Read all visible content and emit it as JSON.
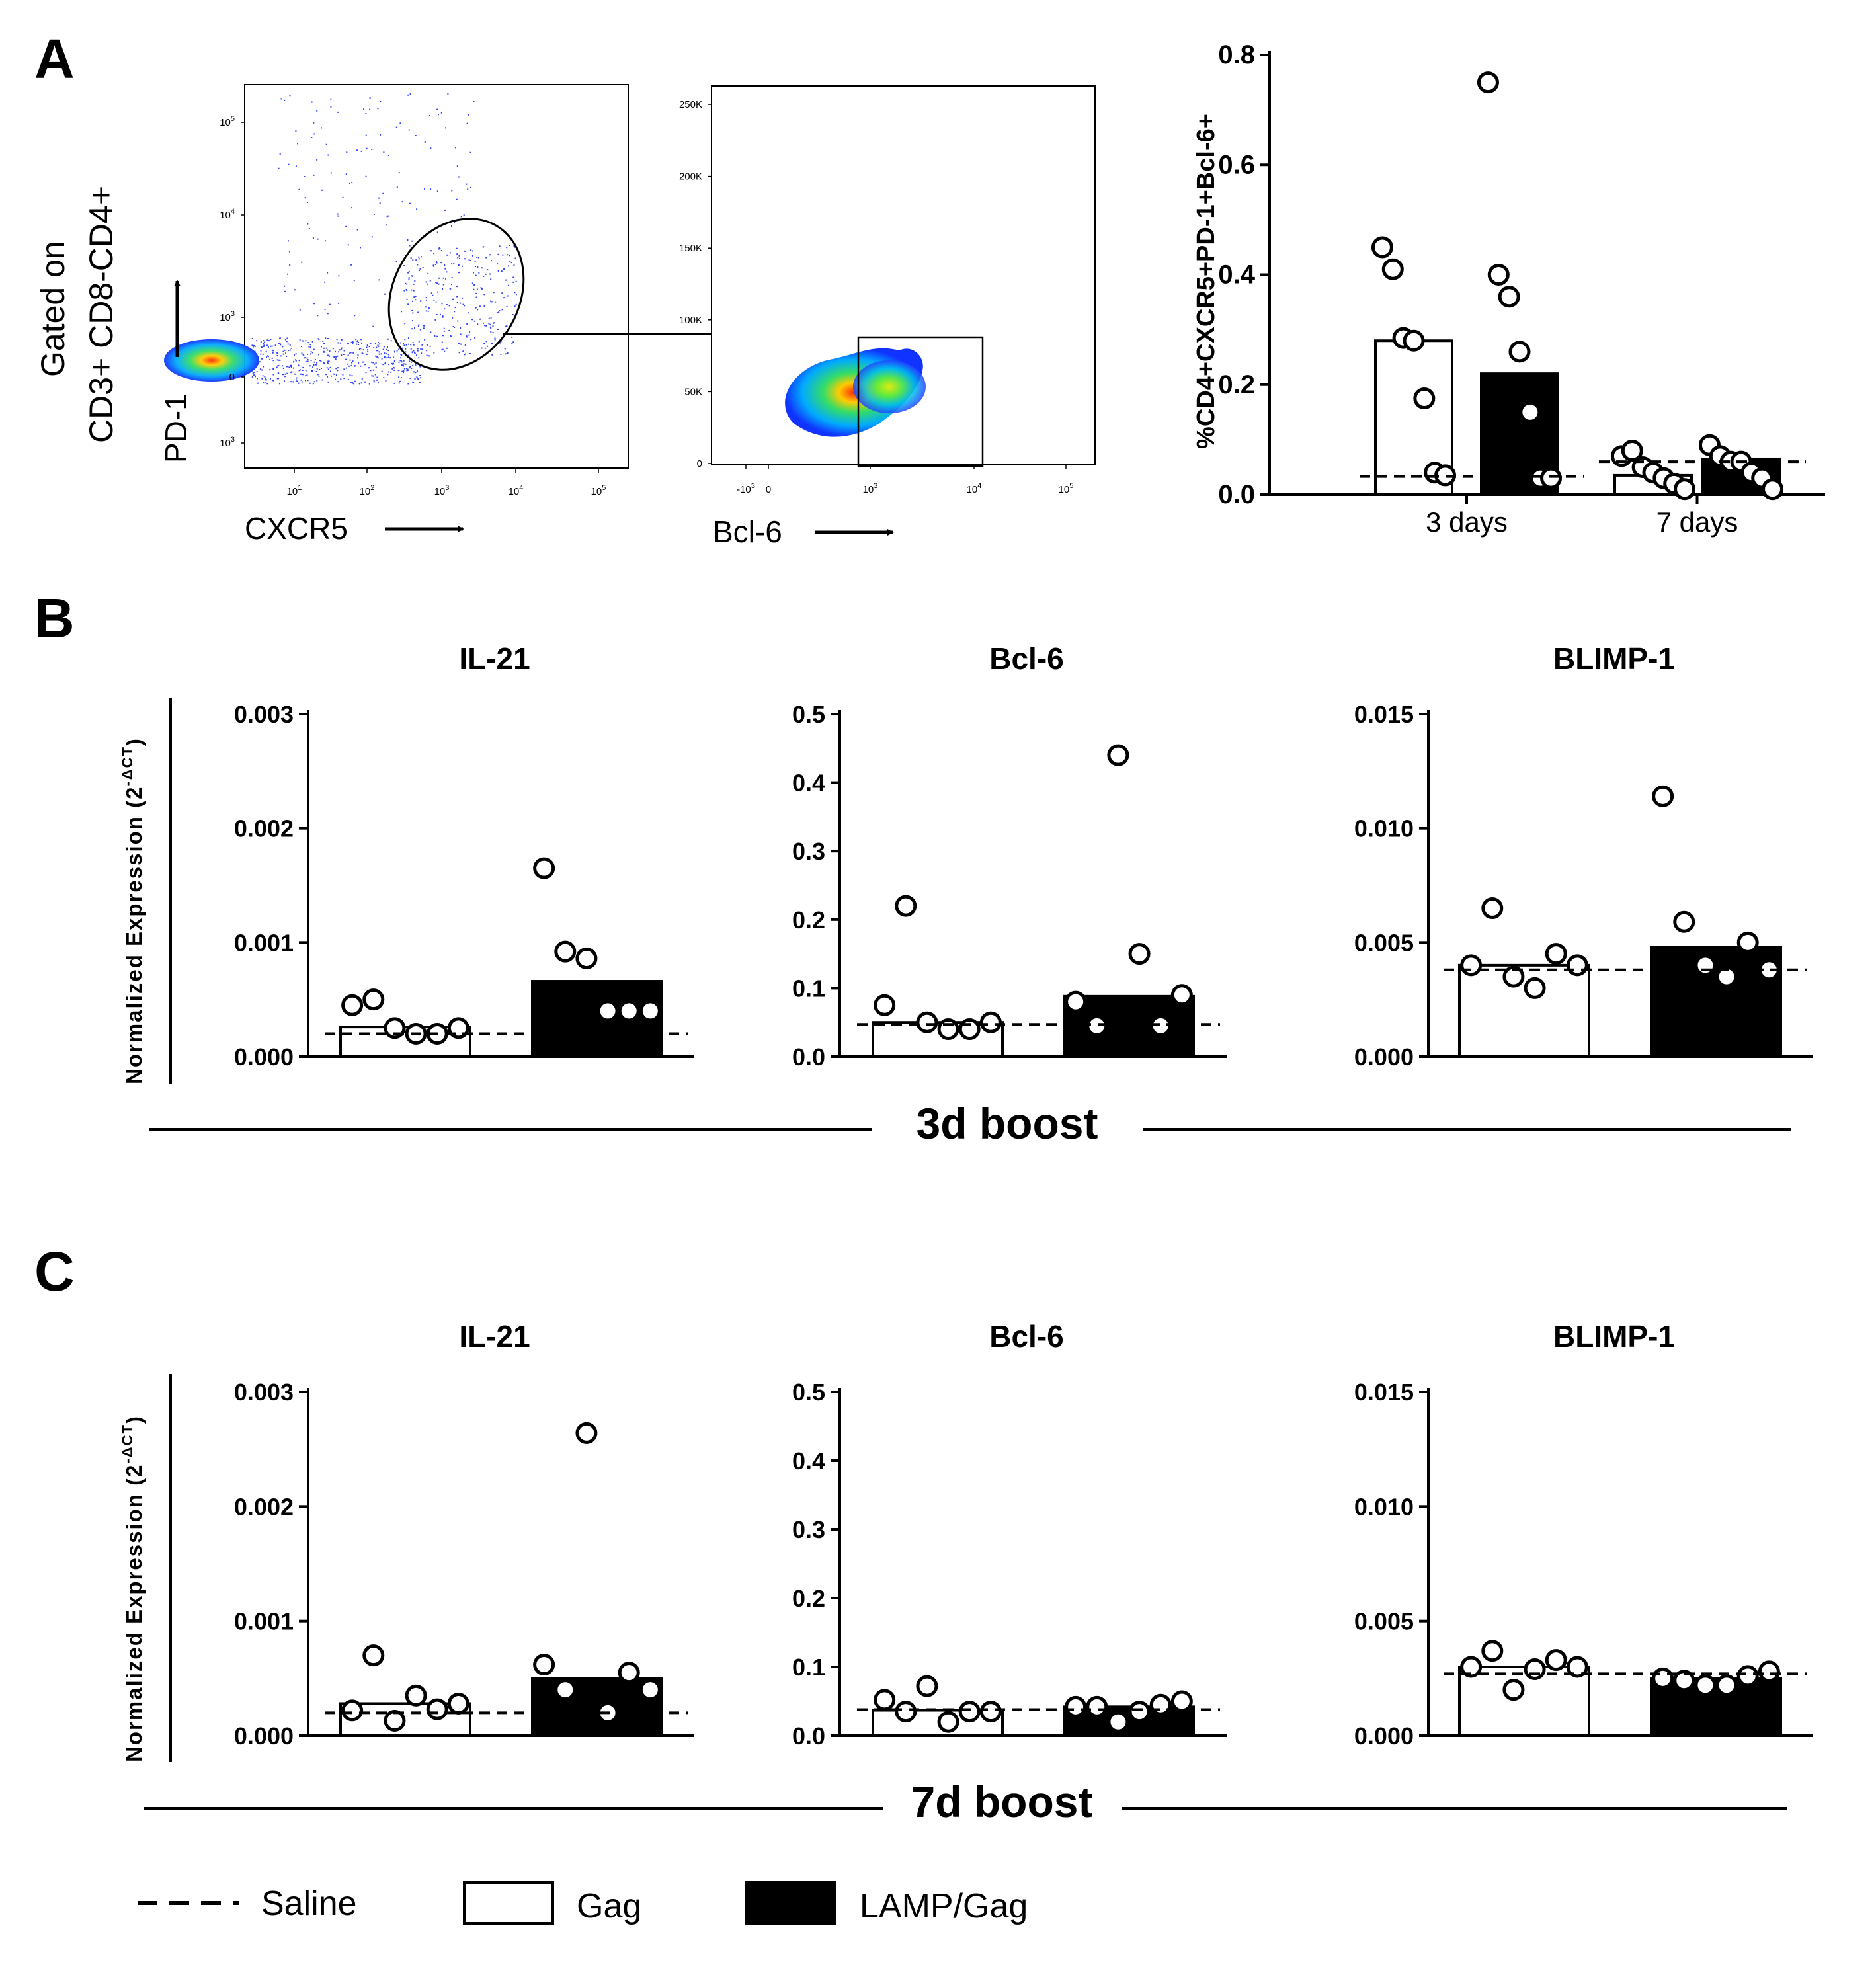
{
  "panels": {
    "a": "A",
    "b": "B",
    "c": "C"
  },
  "flow": {
    "gated_line1": "Gated on",
    "gated_line2": "CD3+ CD8-CD4+",
    "plot1": {
      "ylabel": "PD-1",
      "xlabel": "CXCR5",
      "yticks": [
        {
          "base": "10",
          "exp": "5"
        },
        {
          "base": "10",
          "exp": "4"
        },
        {
          "base": "10",
          "exp": "3"
        },
        {
          "base": "0",
          "exp": ""
        },
        {
          "base": "10",
          "exp": "3"
        }
      ],
      "xticks": [
        {
          "base": "10",
          "exp": "1"
        },
        {
          "base": "10",
          "exp": "2"
        },
        {
          "base": "10",
          "exp": "3"
        },
        {
          "base": "10",
          "exp": "4"
        },
        {
          "base": "10",
          "exp": "5"
        }
      ]
    },
    "plot2": {
      "xlabel": "Bcl-6",
      "yticks": [
        "250K",
        "200K",
        "150K",
        "100K",
        "50K",
        "0"
      ],
      "xticks": [
        {
          "base": "-10",
          "exp": "3"
        },
        {
          "base": "0",
          "exp": ""
        },
        {
          "base": "10",
          "exp": "3"
        },
        {
          "base": "10",
          "exp": "4"
        },
        {
          "base": "10",
          "exp": "5"
        }
      ]
    }
  },
  "legend": {
    "saline": "Saline",
    "gag": "Gag",
    "lamp": "LAMP/Gag"
  },
  "sections": {
    "b_label": "3d boost",
    "c_label": "7d boost"
  },
  "ylabel_main": "Normalized Expression (2",
  "ylabel_exp": "-ΔCT",
  "ylabel_close": ")",
  "chart_data": [
    {
      "id": "A",
      "type": "bar",
      "ylabel": "%CD4+CXCR5+PD-1+Bcl-6+",
      "categories": [
        "3 days",
        "7 days"
      ],
      "ylim": [
        0,
        0.8
      ],
      "yticks": [
        "0.0",
        "0.2",
        "0.4",
        "0.6",
        "0.8"
      ],
      "saline": [
        0.033,
        0.06
      ],
      "series": [
        {
          "name": "Gag",
          "values": [
            0.28,
            0.035
          ],
          "points": [
            [
              0.45,
              0.41,
              0.285,
              0.28,
              0.175,
              0.04,
              0.035
            ],
            [
              0.07,
              0.08,
              0.05,
              0.04,
              0.03,
              0.02,
              0.01
            ]
          ]
        },
        {
          "name": "LAMP/Gag",
          "values": [
            0.22,
            0.065
          ],
          "points": [
            [
              0.75,
              0.4,
              0.36,
              0.26,
              0.15,
              0.03,
              0.03
            ],
            [
              0.09,
              0.07,
              0.06,
              0.06,
              0.04,
              0.03,
              0.01
            ]
          ]
        }
      ]
    },
    {
      "id": "B1",
      "type": "bar",
      "title": "IL-21",
      "ylim": [
        0,
        0.003
      ],
      "yticks": [
        "0.000",
        "0.001",
        "0.002",
        "0.003"
      ],
      "saline": 0.0002,
      "series": [
        {
          "name": "Gag",
          "value": 0.00026,
          "points": [
            0.00045,
            0.0005,
            0.00025,
            0.0002,
            0.0002,
            0.00025
          ]
        },
        {
          "name": "LAMP/Gag",
          "value": 0.00066,
          "points": [
            0.00165,
            0.00092,
            0.00086,
            0.0004,
            0.0004,
            0.0004
          ]
        }
      ]
    },
    {
      "id": "B2",
      "type": "bar",
      "title": "Bcl-6",
      "ylim": [
        0,
        0.5
      ],
      "yticks": [
        "0.0",
        "0.1",
        "0.2",
        "0.3",
        "0.4",
        "0.5"
      ],
      "saline": 0.047,
      "series": [
        {
          "name": "Gag",
          "value": 0.05,
          "points": [
            0.075,
            0.22,
            0.05,
            0.04,
            0.04,
            0.05
          ]
        },
        {
          "name": "LAMP/Gag",
          "value": 0.088,
          "points": [
            0.08,
            0.045,
            0.44,
            0.15,
            0.045,
            0.09
          ]
        }
      ]
    },
    {
      "id": "B3",
      "type": "bar",
      "title": "BLIMP-1",
      "ylim": [
        0,
        0.015
      ],
      "yticks": [
        "0.000",
        "0.005",
        "0.010",
        "0.015"
      ],
      "saline": 0.0038,
      "series": [
        {
          "name": "Gag",
          "value": 0.004,
          "points": [
            0.004,
            0.0065,
            0.0035,
            0.003,
            0.0045,
            0.004
          ]
        },
        {
          "name": "LAMP/Gag",
          "value": 0.0048,
          "points": [
            0.0114,
            0.0059,
            0.004,
            0.0035,
            0.005,
            0.0038
          ]
        }
      ]
    },
    {
      "id": "C1",
      "type": "bar",
      "title": "IL-21",
      "ylim": [
        0,
        0.003
      ],
      "yticks": [
        "0.000",
        "0.001",
        "0.002",
        "0.003"
      ],
      "saline": 0.0002,
      "series": [
        {
          "name": "Gag",
          "value": 0.00028,
          "points": [
            0.00022,
            0.0007,
            0.00013,
            0.00035,
            0.00023,
            0.00028
          ]
        },
        {
          "name": "LAMP/Gag",
          "value": 0.0005,
          "points": [
            0.00062,
            0.0004,
            0.00264,
            0.0002,
            0.00055,
            0.0004
          ]
        }
      ]
    },
    {
      "id": "C2",
      "type": "bar",
      "title": "Bcl-6",
      "ylim": [
        0,
        0.5
      ],
      "yticks": [
        "0.0",
        "0.1",
        "0.2",
        "0.3",
        "0.4",
        "0.5"
      ],
      "saline": 0.038,
      "series": [
        {
          "name": "Gag",
          "value": 0.037,
          "points": [
            0.052,
            0.035,
            0.072,
            0.02,
            0.035,
            0.035
          ]
        },
        {
          "name": "LAMP/Gag",
          "value": 0.042,
          "points": [
            0.042,
            0.042,
            0.02,
            0.035,
            0.045,
            0.05
          ]
        }
      ]
    },
    {
      "id": "C3",
      "type": "bar",
      "title": "BLIMP-1",
      "ylim": [
        0,
        0.015
      ],
      "yticks": [
        "0.000",
        "0.005",
        "0.010",
        "0.015"
      ],
      "saline": 0.0027,
      "series": [
        {
          "name": "Gag",
          "value": 0.003,
          "points": [
            0.003,
            0.0037,
            0.002,
            0.0029,
            0.0033,
            0.003
          ]
        },
        {
          "name": "LAMP/Gag",
          "value": 0.0025,
          "points": [
            0.0025,
            0.0024,
            0.0022,
            0.0022,
            0.0026,
            0.0028
          ]
        }
      ]
    }
  ]
}
